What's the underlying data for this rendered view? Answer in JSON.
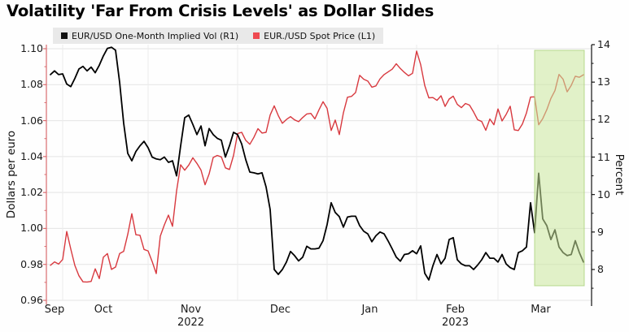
{
  "title": "Volatility 'Far From Crisis Levels' as Dollar Slides",
  "legend": {
    "items": [
      {
        "label": "EUR/USD One-Month Implied Vol (R1)",
        "color": "#111111"
      },
      {
        "label": "EUR./USD Spot Price (L1)",
        "color": "#ee4950"
      }
    ]
  },
  "axes": {
    "left": {
      "title": "Dollars per euro",
      "ticks": [
        1.1,
        1.08,
        1.06,
        1.04,
        1.02,
        1.0,
        0.98,
        0.96
      ],
      "color": "#d96b6f"
    },
    "right": {
      "title": "Percent",
      "ticks": [
        14,
        13,
        12,
        11,
        10,
        9,
        8
      ],
      "color": "#111111"
    },
    "x": {
      "month_labels": [
        "Sep",
        "Oct",
        "Nov",
        "Dec",
        "Jan",
        "Feb",
        "Mar"
      ],
      "year_labels": [
        {
          "text": "2022",
          "month_index": 2
        },
        {
          "text": "2023",
          "month_index": 5
        }
      ]
    }
  },
  "chart_data": {
    "type": "line",
    "title": "Volatility 'Far From Crisis Levels' as Dollar Slides",
    "ylabel_left": "Dollars per euro",
    "ylabel_right": "Percent",
    "ylim_left": [
      0.96,
      1.1
    ],
    "ylim_right": [
      8,
      14
    ],
    "grid": true,
    "legend_position": "top-left",
    "highlight": {
      "start_date": "2023-03-14",
      "end_date": "2023-03-31",
      "color": "#c9e69b",
      "border": "#a9cf77"
    },
    "dates": [
      "2022-09-28",
      "2022-09-29",
      "2022-09-30",
      "2022-10-03",
      "2022-10-04",
      "2022-10-05",
      "2022-10-06",
      "2022-10-07",
      "2022-10-10",
      "2022-10-11",
      "2022-10-12",
      "2022-10-13",
      "2022-10-14",
      "2022-10-17",
      "2022-10-18",
      "2022-10-19",
      "2022-10-20",
      "2022-10-21",
      "2022-10-24",
      "2022-10-25",
      "2022-10-26",
      "2022-10-27",
      "2022-10-28",
      "2022-10-31",
      "2022-11-01",
      "2022-11-02",
      "2022-11-03",
      "2022-11-04",
      "2022-11-07",
      "2022-11-08",
      "2022-11-09",
      "2022-11-10",
      "2022-11-11",
      "2022-11-14",
      "2022-11-15",
      "2022-11-16",
      "2022-11-17",
      "2022-11-18",
      "2022-11-21",
      "2022-11-22",
      "2022-11-23",
      "2022-11-24",
      "2022-11-25",
      "2022-11-28",
      "2022-11-29",
      "2022-11-30",
      "2022-12-01",
      "2022-12-02",
      "2022-12-05",
      "2022-12-06",
      "2022-12-07",
      "2022-12-08",
      "2022-12-09",
      "2022-12-12",
      "2022-12-13",
      "2022-12-14",
      "2022-12-15",
      "2022-12-16",
      "2022-12-19",
      "2022-12-20",
      "2022-12-21",
      "2022-12-22",
      "2022-12-23",
      "2022-12-26",
      "2022-12-27",
      "2022-12-28",
      "2022-12-29",
      "2022-12-30",
      "2023-01-02",
      "2023-01-03",
      "2023-01-04",
      "2023-01-05",
      "2023-01-06",
      "2023-01-09",
      "2023-01-10",
      "2023-01-11",
      "2023-01-12",
      "2023-01-13",
      "2023-01-16",
      "2023-01-17",
      "2023-01-18",
      "2023-01-19",
      "2023-01-20",
      "2023-01-23",
      "2023-01-24",
      "2023-01-25",
      "2023-01-26",
      "2023-01-27",
      "2023-01-30",
      "2023-01-31",
      "2023-02-01",
      "2023-02-02",
      "2023-02-03",
      "2023-02-06",
      "2023-02-07",
      "2023-02-08",
      "2023-02-09",
      "2023-02-10",
      "2023-02-13",
      "2023-02-14",
      "2023-02-15",
      "2023-02-16",
      "2023-02-17",
      "2023-02-20",
      "2023-02-21",
      "2023-02-22",
      "2023-02-23",
      "2023-02-24",
      "2023-02-27",
      "2023-02-28",
      "2023-03-01",
      "2023-03-02",
      "2023-03-03",
      "2023-03-06",
      "2023-03-07",
      "2023-03-08",
      "2023-03-09",
      "2023-03-10",
      "2023-03-13",
      "2023-03-14",
      "2023-03-15",
      "2023-03-16",
      "2023-03-17",
      "2023-03-20",
      "2023-03-21",
      "2023-03-22",
      "2023-03-23",
      "2023-03-24",
      "2023-03-27",
      "2023-03-28",
      "2023-03-29",
      "2023-03-30"
    ],
    "series": [
      {
        "name": "EUR./USD Spot Price (L1)",
        "axis": "left",
        "color": "#d8393f",
        "width": 1.4,
        "values": [
          0.9795,
          0.9814,
          0.9802,
          0.9827,
          0.9983,
          0.9885,
          0.9794,
          0.9737,
          0.9703,
          0.9702,
          0.9705,
          0.9775,
          0.9721,
          0.984,
          0.986,
          0.9772,
          0.9785,
          0.986,
          0.9873,
          0.9967,
          1.0082,
          0.9965,
          0.9962,
          0.9883,
          0.9875,
          0.9816,
          0.9749,
          0.9957,
          1.002,
          1.0074,
          1.0012,
          1.0209,
          1.0354,
          1.0324,
          1.0353,
          1.0393,
          1.0362,
          1.0325,
          1.0243,
          1.0303,
          1.0395,
          1.0406,
          1.0398,
          1.0337,
          1.0328,
          1.0406,
          1.0528,
          1.0535,
          1.049,
          1.0468,
          1.0507,
          1.0555,
          1.0531,
          1.0535,
          1.0631,
          1.0682,
          1.0628,
          1.0585,
          1.0606,
          1.0622,
          1.0604,
          1.0594,
          1.0617,
          1.0637,
          1.064,
          1.061,
          1.066,
          1.0705,
          1.0668,
          1.0545,
          1.0603,
          1.0522,
          1.0643,
          1.073,
          1.0735,
          1.0756,
          1.0852,
          1.083,
          1.082,
          1.0786,
          1.0793,
          1.0832,
          1.0856,
          1.0871,
          1.0886,
          1.0916,
          1.089,
          1.0868,
          1.0849,
          1.0863,
          1.0987,
          1.0911,
          1.0795,
          1.0727,
          1.0728,
          1.0713,
          1.0738,
          1.0679,
          1.072,
          1.0736,
          1.069,
          1.0672,
          1.0695,
          1.0686,
          1.0648,
          1.0605,
          1.0595,
          1.0546,
          1.0609,
          1.0577,
          1.0665,
          1.0598,
          1.0634,
          1.068,
          1.0549,
          1.0545,
          1.0581,
          1.0643,
          1.0731,
          1.0732,
          1.0577,
          1.0611,
          1.0661,
          1.0723,
          1.0767,
          1.0857,
          1.083,
          1.076,
          1.0796,
          1.0847,
          1.0841,
          1.0855
        ]
      },
      {
        "name": "EUR/USD One-Month Implied Vol (R1)",
        "axis": "right",
        "color": "#000000",
        "width": 1.8,
        "values": [
          13.2,
          13.3,
          13.2,
          13.22,
          12.95,
          12.88,
          13.1,
          13.35,
          13.42,
          13.3,
          13.4,
          13.25,
          13.45,
          13.7,
          13.9,
          13.93,
          13.85,
          13.0,
          11.9,
          11.1,
          10.9,
          11.15,
          11.3,
          11.42,
          11.25,
          11.0,
          10.95,
          10.93,
          11.0,
          10.86,
          10.9,
          10.5,
          11.3,
          12.05,
          12.12,
          11.87,
          11.6,
          11.83,
          11.3,
          11.76,
          11.6,
          11.5,
          11.45,
          11.0,
          11.3,
          11.66,
          11.6,
          11.35,
          10.93,
          10.6,
          10.58,
          10.55,
          10.58,
          10.2,
          9.6,
          8.0,
          7.87,
          8.0,
          8.2,
          8.48,
          8.37,
          8.23,
          8.33,
          8.62,
          8.55,
          8.55,
          8.57,
          8.77,
          9.2,
          9.78,
          9.52,
          9.41,
          9.13,
          9.4,
          9.42,
          9.42,
          9.17,
          9.02,
          8.95,
          8.74,
          8.9,
          9.0,
          8.95,
          8.76,
          8.55,
          8.33,
          8.22,
          8.4,
          8.42,
          8.5,
          8.42,
          8.63,
          7.9,
          7.72,
          8.1,
          8.4,
          8.15,
          8.3,
          8.8,
          8.85,
          8.26,
          8.15,
          8.1,
          8.1,
          8.0,
          8.12,
          8.26,
          8.45,
          8.3,
          8.3,
          8.2,
          8.4,
          8.15,
          8.05,
          8.0,
          8.45,
          8.5,
          8.6,
          9.78,
          8.98,
          10.57,
          9.35,
          9.17,
          8.8,
          9.06,
          8.6,
          8.45,
          8.37,
          8.4,
          8.77,
          8.45,
          8.2
        ]
      }
    ]
  }
}
